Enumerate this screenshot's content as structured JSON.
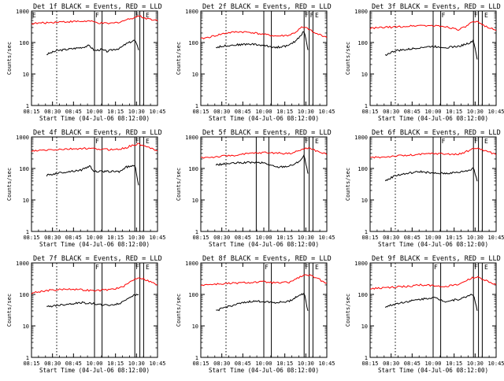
{
  "chart_data": [
    {
      "type": "line",
      "title": "Det 1f BLACK = Events, RED = LLD",
      "xlabel": "Start Time (04-Jul-06 08:12:00)",
      "ylabel": "Counts/sec",
      "ylim": [
        1,
        1000
      ],
      "yscale": "log",
      "x_ticks": [
        "08:15",
        "08:30",
        "08:45",
        "10:00",
        "10:15",
        "10:30",
        "10:45"
      ],
      "y_ticks": [
        "1",
        "10",
        "100",
        "1000"
      ],
      "flags": [
        "E",
        "F",
        "F",
        "E"
      ],
      "series": [
        {
          "name": "Events",
          "color": "#000000",
          "x": [
            0.12,
            0.2,
            0.3,
            0.4,
            0.46,
            0.5,
            0.55,
            0.6,
            0.65,
            0.7,
            0.75,
            0.8,
            0.82,
            0.85
          ],
          "y": [
            42,
            55,
            62,
            70,
            80,
            55,
            60,
            52,
            60,
            65,
            90,
            110,
            120,
            60
          ]
        },
        {
          "name": "LLD",
          "color": "#ff0000",
          "x": [
            0.0,
            0.1,
            0.2,
            0.3,
            0.4,
            0.46,
            0.5,
            0.55,
            0.6,
            0.65,
            0.7,
            0.75,
            0.8,
            0.85,
            0.9,
            1.0
          ],
          "y": [
            400,
            420,
            450,
            460,
            470,
            480,
            440,
            410,
            400,
            410,
            450,
            520,
            600,
            700,
            600,
            500
          ]
        }
      ]
    },
    {
      "type": "line",
      "title": "Det 2f BLACK = Events, RED = LLD",
      "xlabel": "Start Time (04-Jul-06 08:12:00)",
      "ylabel": "Counts/sec",
      "ylim": [
        1,
        1000
      ],
      "yscale": "log",
      "x_ticks": [
        "08:15",
        "08:30",
        "08:45",
        "10:00",
        "10:15",
        "10:30",
        "10:45"
      ],
      "y_ticks": [
        "1",
        "10",
        "100",
        "1000"
      ],
      "flags": [
        "F",
        "F",
        "E"
      ],
      "series": [
        {
          "name": "Events",
          "color": "#000000",
          "x": [
            0.12,
            0.2,
            0.3,
            0.4,
            0.5,
            0.6,
            0.7,
            0.75,
            0.8,
            0.82,
            0.85
          ],
          "y": [
            70,
            80,
            85,
            90,
            80,
            70,
            80,
            110,
            180,
            240,
            60
          ]
        },
        {
          "name": "LLD",
          "color": "#ff0000",
          "x": [
            0.0,
            0.1,
            0.2,
            0.3,
            0.4,
            0.5,
            0.6,
            0.7,
            0.75,
            0.8,
            0.85,
            0.9,
            1.0
          ],
          "y": [
            130,
            160,
            200,
            220,
            210,
            180,
            160,
            170,
            210,
            300,
            280,
            200,
            150
          ]
        }
      ]
    },
    {
      "type": "line",
      "title": "Det 3f BLACK = Events, RED = LLD",
      "xlabel": "Start Time (04-Jul-06 08:12:00)",
      "ylabel": "Counts/sec",
      "ylim": [
        1,
        1000
      ],
      "yscale": "log",
      "x_ticks": [
        "08:15",
        "08:30",
        "08:45",
        "10:00",
        "10:15",
        "10:30",
        "10:45"
      ],
      "y_ticks": [
        "1",
        "10",
        "100",
        "1000"
      ],
      "flags": [
        "F",
        "F",
        "E"
      ],
      "series": [
        {
          "name": "Events",
          "color": "#000000",
          "x": [
            0.12,
            0.2,
            0.3,
            0.4,
            0.5,
            0.6,
            0.7,
            0.8,
            0.82,
            0.85
          ],
          "y": [
            40,
            55,
            60,
            70,
            75,
            70,
            75,
            100,
            120,
            30
          ]
        },
        {
          "name": "LLD",
          "color": "#ff0000",
          "x": [
            0.0,
            0.1,
            0.2,
            0.3,
            0.4,
            0.5,
            0.6,
            0.7,
            0.75,
            0.8,
            0.85,
            0.9,
            1.0
          ],
          "y": [
            280,
            300,
            310,
            330,
            350,
            340,
            320,
            260,
            300,
            420,
            450,
            350,
            250
          ]
        }
      ]
    },
    {
      "type": "line",
      "title": "Det 4f BLACK = Events, RED = LLD",
      "xlabel": "Start Time (04-Jul-06 08:12:00)",
      "ylabel": "Counts/sec",
      "ylim": [
        1,
        1000
      ],
      "yscale": "log",
      "x_ticks": [
        "08:15",
        "08:30",
        "08:45",
        "10:00",
        "10:15",
        "10:30",
        "10:45"
      ],
      "y_ticks": [
        "1",
        "10",
        "100",
        "1000"
      ],
      "flags": [
        "F",
        "F",
        "E"
      ],
      "series": [
        {
          "name": "Events",
          "color": "#000000",
          "x": [
            0.12,
            0.2,
            0.3,
            0.4,
            0.46,
            0.5,
            0.6,
            0.7,
            0.75,
            0.8,
            0.82,
            0.85
          ],
          "y": [
            60,
            70,
            80,
            90,
            120,
            80,
            80,
            80,
            110,
            120,
            130,
            30
          ]
        },
        {
          "name": "LLD",
          "color": "#ff0000",
          "x": [
            0.0,
            0.1,
            0.2,
            0.3,
            0.4,
            0.5,
            0.6,
            0.7,
            0.75,
            0.8,
            0.85,
            0.9,
            1.0
          ],
          "y": [
            350,
            380,
            400,
            410,
            430,
            420,
            400,
            410,
            450,
            550,
            600,
            500,
            380
          ]
        }
      ]
    },
    {
      "type": "line",
      "title": "Det 5f BLACK = Events, RED = LLD",
      "xlabel": "Start Time (04-Jul-06 08:12:00)",
      "ylabel": "Counts/sec",
      "ylim": [
        1,
        1000
      ],
      "yscale": "log",
      "x_ticks": [
        "08:15",
        "08:30",
        "08:45",
        "10:00",
        "10:15",
        "10:30",
        "10:45"
      ],
      "y_ticks": [
        "1",
        "10",
        "100",
        "1000"
      ],
      "flags": [
        "F",
        "E"
      ],
      "series": [
        {
          "name": "Events",
          "color": "#000000",
          "x": [
            0.12,
            0.2,
            0.3,
            0.4,
            0.5,
            0.6,
            0.7,
            0.75,
            0.8,
            0.82,
            0.85
          ],
          "y": [
            130,
            140,
            150,
            155,
            150,
            110,
            120,
            140,
            200,
            260,
            70
          ]
        },
        {
          "name": "LLD",
          "color": "#ff0000",
          "x": [
            0.0,
            0.1,
            0.2,
            0.3,
            0.4,
            0.5,
            0.6,
            0.7,
            0.75,
            0.8,
            0.85,
            0.9,
            1.0
          ],
          "y": [
            220,
            230,
            250,
            270,
            300,
            320,
            310,
            300,
            330,
            400,
            450,
            380,
            280
          ]
        }
      ]
    },
    {
      "type": "line",
      "title": "Det 6f BLACK = Events, RED = LLD",
      "xlabel": "Start Time (04-Jul-06 08:12:00)",
      "ylabel": "Counts/sec",
      "ylim": [
        1,
        1000
      ],
      "yscale": "log",
      "x_ticks": [
        "08:15",
        "08:30",
        "08:45",
        "10:00",
        "10:15",
        "10:30",
        "10:45"
      ],
      "y_ticks": [
        "1",
        "10",
        "100",
        "1000"
      ],
      "flags": [
        "F",
        "F",
        "E"
      ],
      "series": [
        {
          "name": "Events",
          "color": "#000000",
          "x": [
            0.12,
            0.2,
            0.3,
            0.4,
            0.5,
            0.6,
            0.7,
            0.8,
            0.82,
            0.85
          ],
          "y": [
            40,
            60,
            70,
            80,
            70,
            70,
            75,
            90,
            110,
            40
          ]
        },
        {
          "name": "LLD",
          "color": "#ff0000",
          "x": [
            0.0,
            0.1,
            0.2,
            0.3,
            0.4,
            0.5,
            0.6,
            0.7,
            0.75,
            0.8,
            0.85,
            0.9,
            1.0
          ],
          "y": [
            220,
            230,
            250,
            260,
            280,
            300,
            290,
            280,
            320,
            400,
            450,
            380,
            280
          ]
        }
      ]
    },
    {
      "type": "line",
      "title": "Det 7f BLACK = Events, RED = LLD",
      "xlabel": "Start Time (04-Jul-06 08:12:00)",
      "ylabel": "Counts/sec",
      "ylim": [
        1,
        1000
      ],
      "yscale": "log",
      "x_ticks": [
        "08:15",
        "08:30",
        "08:45",
        "10:00",
        "10:15",
        "10:30",
        "10:45"
      ],
      "y_ticks": [
        "1",
        "10",
        "100",
        "1000"
      ],
      "flags": [
        "F",
        "F",
        "E"
      ],
      "series": [
        {
          "name": "Events",
          "color": "#000000",
          "x": [
            0.12,
            0.2,
            0.3,
            0.4,
            0.5,
            0.6,
            0.7,
            0.75,
            0.8,
            0.85
          ],
          "y": [
            40,
            45,
            50,
            55,
            50,
            45,
            50,
            70,
            90,
            100
          ]
        },
        {
          "name": "LLD",
          "color": "#ff0000",
          "x": [
            0.0,
            0.1,
            0.2,
            0.3,
            0.4,
            0.5,
            0.6,
            0.7,
            0.75,
            0.8,
            0.85,
            0.9,
            1.0
          ],
          "y": [
            110,
            130,
            140,
            150,
            140,
            130,
            140,
            160,
            200,
            280,
            350,
            300,
            200
          ]
        }
      ]
    },
    {
      "type": "line",
      "title": "Det 8f BLACK = Events, RED = LLD",
      "xlabel": "Start Time (04-Jul-06 08:12:00)",
      "ylabel": "Counts/sec",
      "ylim": [
        1,
        1000
      ],
      "yscale": "log",
      "x_ticks": [
        "08:15",
        "08:30",
        "08:45",
        "10:00",
        "10:15",
        "10:30",
        "10:45"
      ],
      "y_ticks": [
        "1",
        "10",
        "100",
        "1000"
      ],
      "flags": [
        "F",
        "F",
        "E"
      ],
      "series": [
        {
          "name": "Events",
          "color": "#000000",
          "x": [
            0.12,
            0.2,
            0.3,
            0.4,
            0.5,
            0.6,
            0.7,
            0.75,
            0.8,
            0.82,
            0.85
          ],
          "y": [
            30,
            40,
            50,
            60,
            60,
            55,
            60,
            80,
            100,
            110,
            30
          ]
        },
        {
          "name": "LLD",
          "color": "#ff0000",
          "x": [
            0.0,
            0.1,
            0.2,
            0.3,
            0.4,
            0.5,
            0.6,
            0.7,
            0.75,
            0.8,
            0.85,
            0.9,
            1.0
          ],
          "y": [
            200,
            210,
            220,
            230,
            240,
            250,
            230,
            240,
            300,
            380,
            420,
            350,
            230
          ]
        }
      ]
    },
    {
      "type": "line",
      "title": "Det 9f BLACK = Events, RED = LLD",
      "xlabel": "Start Time (04-Jul-06 08:12:00)",
      "ylabel": "Counts/sec",
      "ylim": [
        1,
        1000
      ],
      "yscale": "log",
      "x_ticks": [
        "08:15",
        "08:30",
        "08:45",
        "10:00",
        "10:15",
        "10:30",
        "10:45"
      ],
      "y_ticks": [
        "1",
        "10",
        "100",
        "1000"
      ],
      "flags": [
        "F",
        "F",
        "E"
      ],
      "series": [
        {
          "name": "Events",
          "color": "#000000",
          "x": [
            0.12,
            0.2,
            0.3,
            0.4,
            0.5,
            0.6,
            0.7,
            0.75,
            0.8,
            0.82,
            0.85
          ],
          "y": [
            40,
            50,
            60,
            70,
            80,
            60,
            70,
            80,
            100,
            100,
            30
          ]
        },
        {
          "name": "LLD",
          "color": "#ff0000",
          "x": [
            0.0,
            0.1,
            0.2,
            0.3,
            0.4,
            0.5,
            0.6,
            0.7,
            0.75,
            0.8,
            0.85,
            0.9,
            1.0
          ],
          "y": [
            150,
            160,
            170,
            180,
            200,
            190,
            180,
            200,
            260,
            330,
            350,
            300,
            200
          ]
        }
      ]
    }
  ]
}
